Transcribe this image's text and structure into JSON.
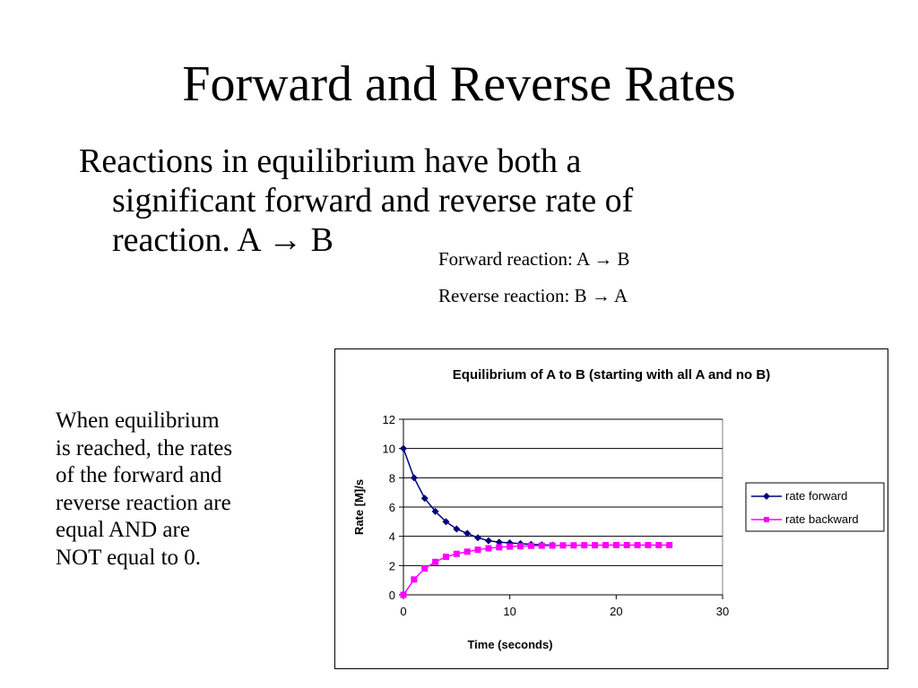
{
  "slide": {
    "title": "Forward and Reverse Rates",
    "bullet_lines": [
      "Reactions in equilibrium have both a",
      "significant forward and reverse rate of",
      "reaction.  A  → B"
    ],
    "forward_reaction": "Forward reaction:  A → B",
    "reverse_reaction": "Reverse reaction:  B → A",
    "note_lines": [
      "When equilibrium",
      "is reached, the rates",
      "of the forward and",
      "reverse reaction are",
      "equal AND are",
      "NOT equal to 0."
    ]
  },
  "chart_data": {
    "type": "line",
    "title": "Equilibrium of A to B (starting with all A and no B)",
    "xlabel": "Time (seconds)",
    "ylabel": "Rate [M]/s",
    "xlim": [
      0,
      30
    ],
    "ylim": [
      0,
      12
    ],
    "xticks": [
      0,
      10,
      20,
      30
    ],
    "yticks": [
      0,
      2,
      4,
      6,
      8,
      10,
      12
    ],
    "grid": "horizontal",
    "legend_position": "right",
    "series": [
      {
        "name": "rate forward",
        "color": "#000080",
        "marker": "diamond",
        "x": [
          0,
          1,
          2,
          3,
          4,
          5,
          6,
          7,
          8,
          9,
          10,
          11,
          12,
          13,
          14
        ],
        "y": [
          10,
          8.0,
          6.6,
          5.7,
          5.0,
          4.5,
          4.2,
          3.9,
          3.7,
          3.6,
          3.55,
          3.5,
          3.45,
          3.42,
          3.4
        ]
      },
      {
        "name": "rate backward",
        "color": "#ff00ff",
        "marker": "square",
        "x": [
          0,
          1,
          2,
          3,
          4,
          5,
          6,
          7,
          8,
          9,
          10,
          11,
          12,
          13,
          14,
          15,
          16,
          17,
          18,
          19,
          20,
          21,
          22,
          23,
          24,
          25
        ],
        "y": [
          0,
          1.05,
          1.8,
          2.25,
          2.6,
          2.8,
          2.95,
          3.08,
          3.18,
          3.25,
          3.3,
          3.32,
          3.35,
          3.36,
          3.37,
          3.38,
          3.38,
          3.39,
          3.39,
          3.4,
          3.4,
          3.4,
          3.4,
          3.4,
          3.4,
          3.4
        ]
      }
    ]
  }
}
